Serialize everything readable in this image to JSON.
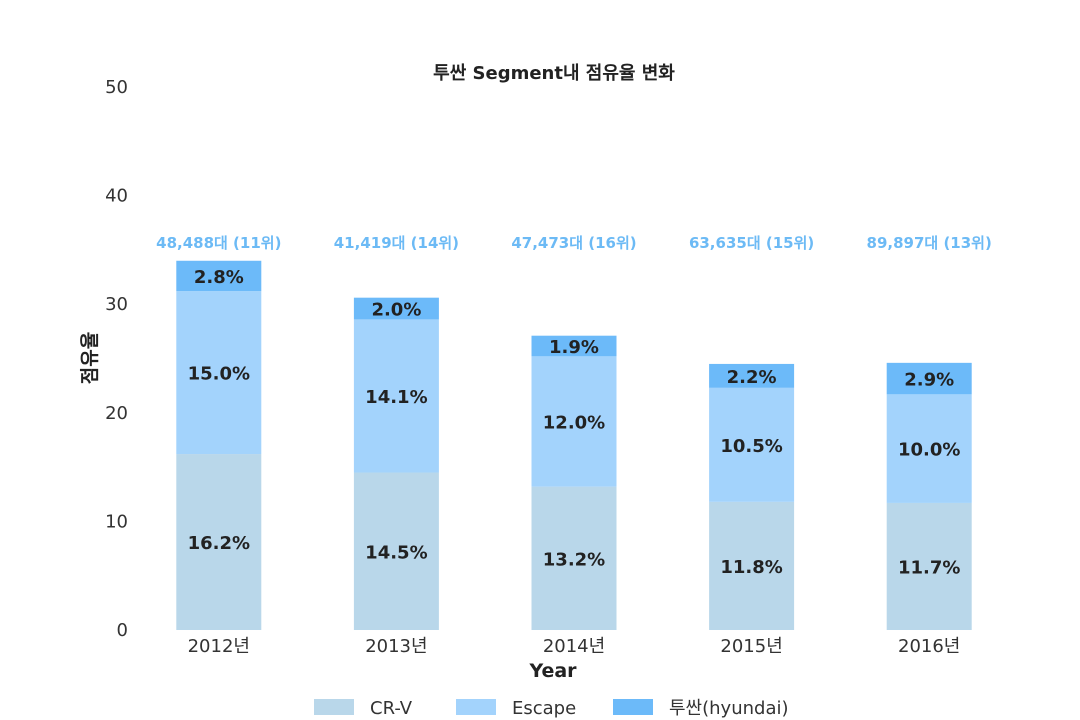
{
  "chart_data": {
    "type": "bar",
    "stacked": true,
    "title": "투싼 Segment내 점유율 변화",
    "xlabel": "Year",
    "ylabel": "점유율",
    "ylim": [
      0,
      50
    ],
    "yticks": [
      "0",
      "10",
      "20",
      "30",
      "40",
      "50"
    ],
    "categories": [
      "2012년",
      "2013년",
      "2014년",
      "2015년",
      "2016년"
    ],
    "series": [
      {
        "name": "CR-V",
        "color": "#b9d7ea",
        "values": [
          16.2,
          14.5,
          13.2,
          11.8,
          11.7
        ],
        "labels": [
          "16.2%",
          "14.5%",
          "13.2%",
          "11.8%",
          "11.7%"
        ]
      },
      {
        "name": "Escape",
        "color": "#a3d3fc",
        "values": [
          15.0,
          14.1,
          12.0,
          10.5,
          10.0
        ],
        "labels": [
          "15.0%",
          "14.1%",
          "12.0%",
          "10.5%",
          "10.0%"
        ]
      },
      {
        "name": "투싼(hyundai)",
        "color": "#6cbaf9",
        "values": [
          2.8,
          2.0,
          1.9,
          2.2,
          2.9
        ],
        "labels": [
          "2.8%",
          "2.0%",
          "1.9%",
          "2.2%",
          "2.9%"
        ]
      }
    ],
    "annotations": [
      "48,488대 (11위)",
      "41,419대 (14위)",
      "47,473대 (16위)",
      "63,635대 (15위)",
      "89,897대 (13위)"
    ],
    "annotation_color": "#6cbaf5",
    "grid": false,
    "legend_position": "bottom"
  }
}
